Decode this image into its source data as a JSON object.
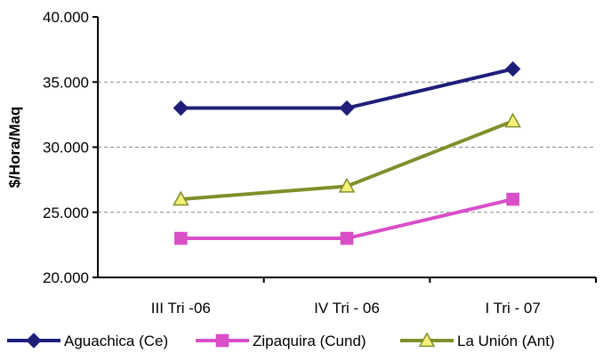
{
  "chart_data": {
    "type": "line",
    "categories": [
      "III Tri -06",
      "IV Tri - 06",
      "I Tri - 07"
    ],
    "ylabel": "$/Hora/Maq",
    "ylim": [
      20000,
      40000
    ],
    "yticks": [
      {
        "value": 20000,
        "label": "20.000"
      },
      {
        "value": 25000,
        "label": "25.000"
      },
      {
        "value": 30000,
        "label": "30.000"
      },
      {
        "value": 35000,
        "label": "35.000"
      },
      {
        "value": 40000,
        "label": "40.000"
      }
    ],
    "grid": "horizontal dashed",
    "legend_position": "bottom",
    "series": [
      {
        "name": "Aguachica (Ce)",
        "values": [
          33000,
          33000,
          36000
        ],
        "color": "#1f1f7a",
        "marker": "diamond",
        "marker_fill": "#1f1f7a"
      },
      {
        "name": "Zipaquira (Cund)",
        "values": [
          23000,
          23000,
          26000
        ],
        "color": "#d84fc8",
        "marker": "square",
        "marker_fill": "#d84fc8"
      },
      {
        "name": "La Unión (Ant)",
        "values": [
          26000,
          27000,
          32000
        ],
        "color": "#7f8f2a",
        "marker": "triangle",
        "marker_fill": "#f4f07a"
      }
    ]
  }
}
